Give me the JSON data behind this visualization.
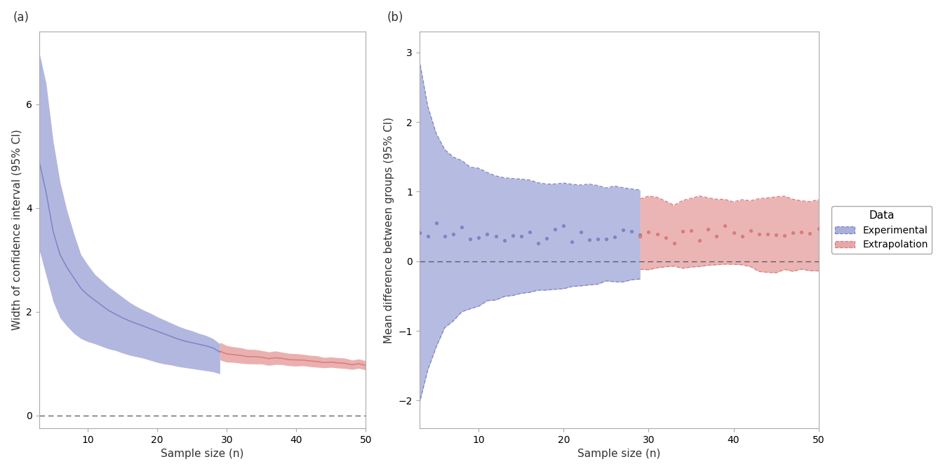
{
  "panel_a": {
    "label": "(a)",
    "xlabel": "Sample size (n)",
    "ylabel": "Width of confidence interval (95% CI)",
    "xlim": [
      3,
      50
    ],
    "ylim": [
      -0.25,
      7.4
    ],
    "yticks": [
      0,
      2,
      4,
      6
    ],
    "xticks": [
      10,
      20,
      30,
      40,
      50
    ],
    "exp_color": "#7b85c4",
    "exp_fill": "#aab0dc",
    "ext_color": "#d97b7b",
    "ext_fill": "#e8a8a8"
  },
  "panel_b": {
    "label": "(b)",
    "xlabel": "Sample size (n)",
    "ylabel": "Mean difference between groups (95% CI)",
    "xlim": [
      3,
      50
    ],
    "ylim": [
      -2.4,
      3.3
    ],
    "yticks": [
      -2,
      -1,
      0,
      1,
      2,
      3
    ],
    "xticks": [
      10,
      20,
      30,
      40,
      50
    ],
    "exp_color": "#7b85c4",
    "exp_fill": "#aab0dc",
    "ext_color": "#d97b7b",
    "ext_fill": "#e8a8a8",
    "legend_title": "Data",
    "legend_items": [
      "Experimental",
      "Extrapolation"
    ]
  },
  "background_color": "#ffffff",
  "text_color": "#333333",
  "spine_color": "#aaaaaa",
  "dashed_line_color": "#555555"
}
